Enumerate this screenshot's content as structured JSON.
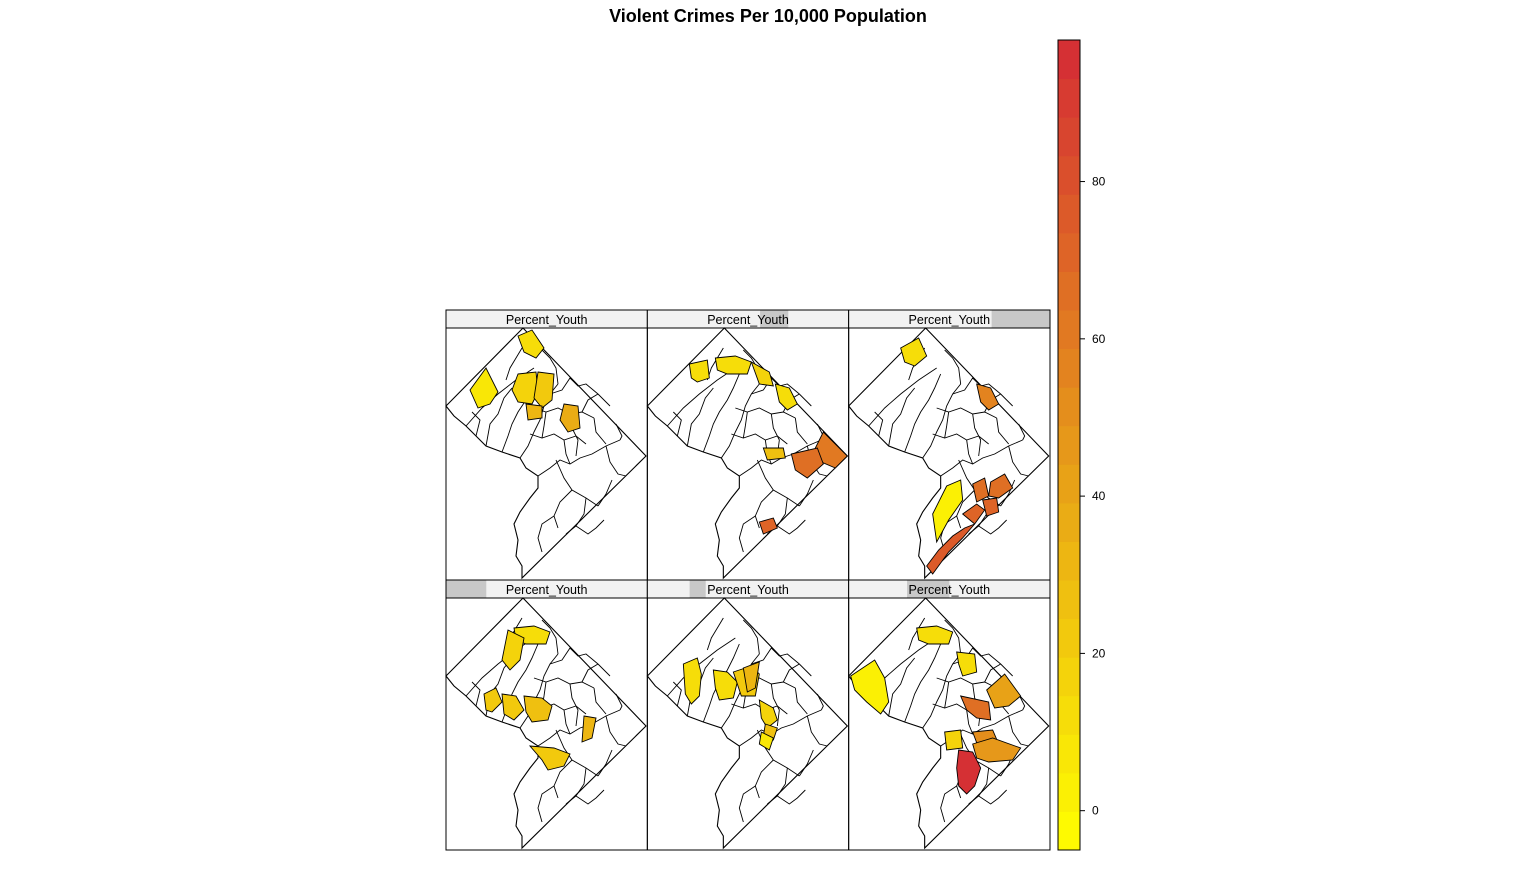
{
  "title": "Violent Crimes Per 10,000 Population",
  "panels": [
    {
      "strip_label": "Percent_Youth",
      "shingle_range": [
        0.0,
        0.0
      ],
      "highlighted": [
        {
          "district": "north-tip",
          "value": 12
        },
        {
          "district": "northwest-edge",
          "value": 8
        },
        {
          "district": "central-west",
          "value": 18
        },
        {
          "district": "central-east",
          "value": 20
        },
        {
          "district": "central-south",
          "value": 30
        },
        {
          "district": "northeast-inner",
          "value": 36
        }
      ]
    },
    {
      "strip_label": "Percent_Youth",
      "shingle_range": [
        0.56,
        0.7
      ],
      "highlighted": [
        {
          "district": "upper-west",
          "value": 12
        },
        {
          "district": "upper-central",
          "value": 14
        },
        {
          "district": "upper-east",
          "value": 16
        },
        {
          "district": "northeast-edge",
          "value": 10
        },
        {
          "district": "mid-anacostia",
          "value": 28
        },
        {
          "district": "east-corner",
          "value": 62
        },
        {
          "district": "east-mid",
          "value": 64
        },
        {
          "district": "south-east",
          "value": 70
        }
      ]
    },
    {
      "strip_label": "Percent_Youth",
      "shingle_range": [
        0.71,
        1.0
      ],
      "highlighted": [
        {
          "district": "north-west-upper",
          "value": 10
        },
        {
          "district": "northeast-edge",
          "value": 58
        },
        {
          "district": "southwest-river",
          "value": 2
        },
        {
          "district": "southeast-1",
          "value": 66
        },
        {
          "district": "southeast-2",
          "value": 68
        },
        {
          "district": "southeast-3",
          "value": 70
        },
        {
          "district": "southeast-4",
          "value": 72
        },
        {
          "district": "far-south",
          "value": 74
        }
      ]
    },
    {
      "strip_label": "Percent_Youth",
      "shingle_range": [
        0.0,
        0.2
      ],
      "highlighted": [
        {
          "district": "upper-central",
          "value": 14
        },
        {
          "district": "west-1",
          "value": 20
        },
        {
          "district": "west-2",
          "value": 24
        },
        {
          "district": "west-3",
          "value": 18
        },
        {
          "district": "central",
          "value": 26
        },
        {
          "district": "east-inner",
          "value": 32
        },
        {
          "district": "south-central",
          "value": 22
        }
      ]
    },
    {
      "strip_label": "Percent_Youth",
      "shingle_range": [
        0.21,
        0.29
      ],
      "highlighted": [
        {
          "district": "west",
          "value": 10
        },
        {
          "district": "center-1",
          "value": 14
        },
        {
          "district": "center-2",
          "value": 24
        },
        {
          "district": "center-3",
          "value": 30
        },
        {
          "district": "center-4",
          "value": 18
        },
        {
          "district": "south-1",
          "value": 26
        },
        {
          "district": "south-2",
          "value": 8
        }
      ]
    },
    {
      "strip_label": "Percent_Youth",
      "shingle_range": [
        0.29,
        0.5
      ],
      "highlighted": [
        {
          "district": "northwest-large",
          "value": 4
        },
        {
          "district": "upper-central",
          "value": 10
        },
        {
          "district": "north-east",
          "value": 14
        },
        {
          "district": "east-large",
          "value": 44
        },
        {
          "district": "east-mid",
          "value": 64
        },
        {
          "district": "southeast-1",
          "value": 52
        },
        {
          "district": "southeast-2",
          "value": 46
        },
        {
          "district": "south-mid",
          "value": 18
        },
        {
          "district": "far-south",
          "value": 94
        }
      ]
    }
  ],
  "colorkey": {
    "min": -5,
    "max": 98,
    "steps": 21,
    "low_color": "#FFFF00",
    "mid_color": "#E8A317",
    "high_color": "#D42B35",
    "ticks": [
      "0",
      "20",
      "40",
      "60",
      "80"
    ]
  },
  "tick_values": [
    0,
    20,
    40,
    60,
    80
  ]
}
